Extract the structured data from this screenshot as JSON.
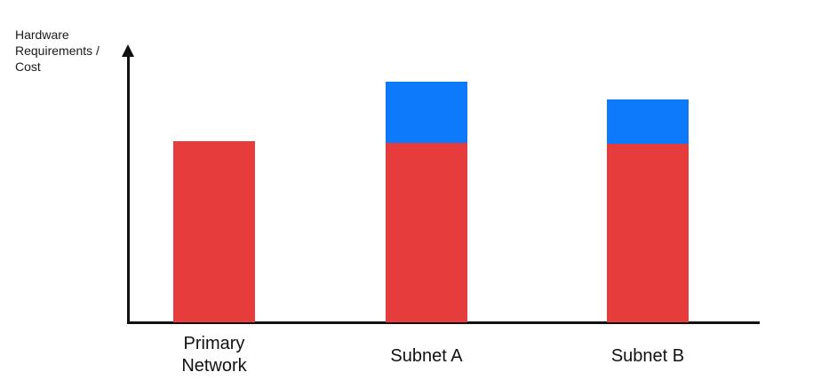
{
  "chart_data": {
    "type": "bar",
    "stacked": true,
    "title": "",
    "xlabel": "",
    "ylabel": "Hardware\nRequirements /\nCost",
    "categories": [
      "Primary Network",
      "Subnet A",
      "Subnet B"
    ],
    "series": [
      {
        "name": "red-segment",
        "color": "#e73c3c",
        "values": [
          204,
          202,
          201
        ]
      },
      {
        "name": "blue-segment",
        "color": "#0d7afc",
        "values": [
          0,
          69,
          50
        ]
      }
    ],
    "legend": "none",
    "grid": false,
    "axis_color": "#111111",
    "y_axis": {
      "numeric_labels": false,
      "arrow": true
    },
    "units": "relative heights (no numeric scale shown)"
  }
}
